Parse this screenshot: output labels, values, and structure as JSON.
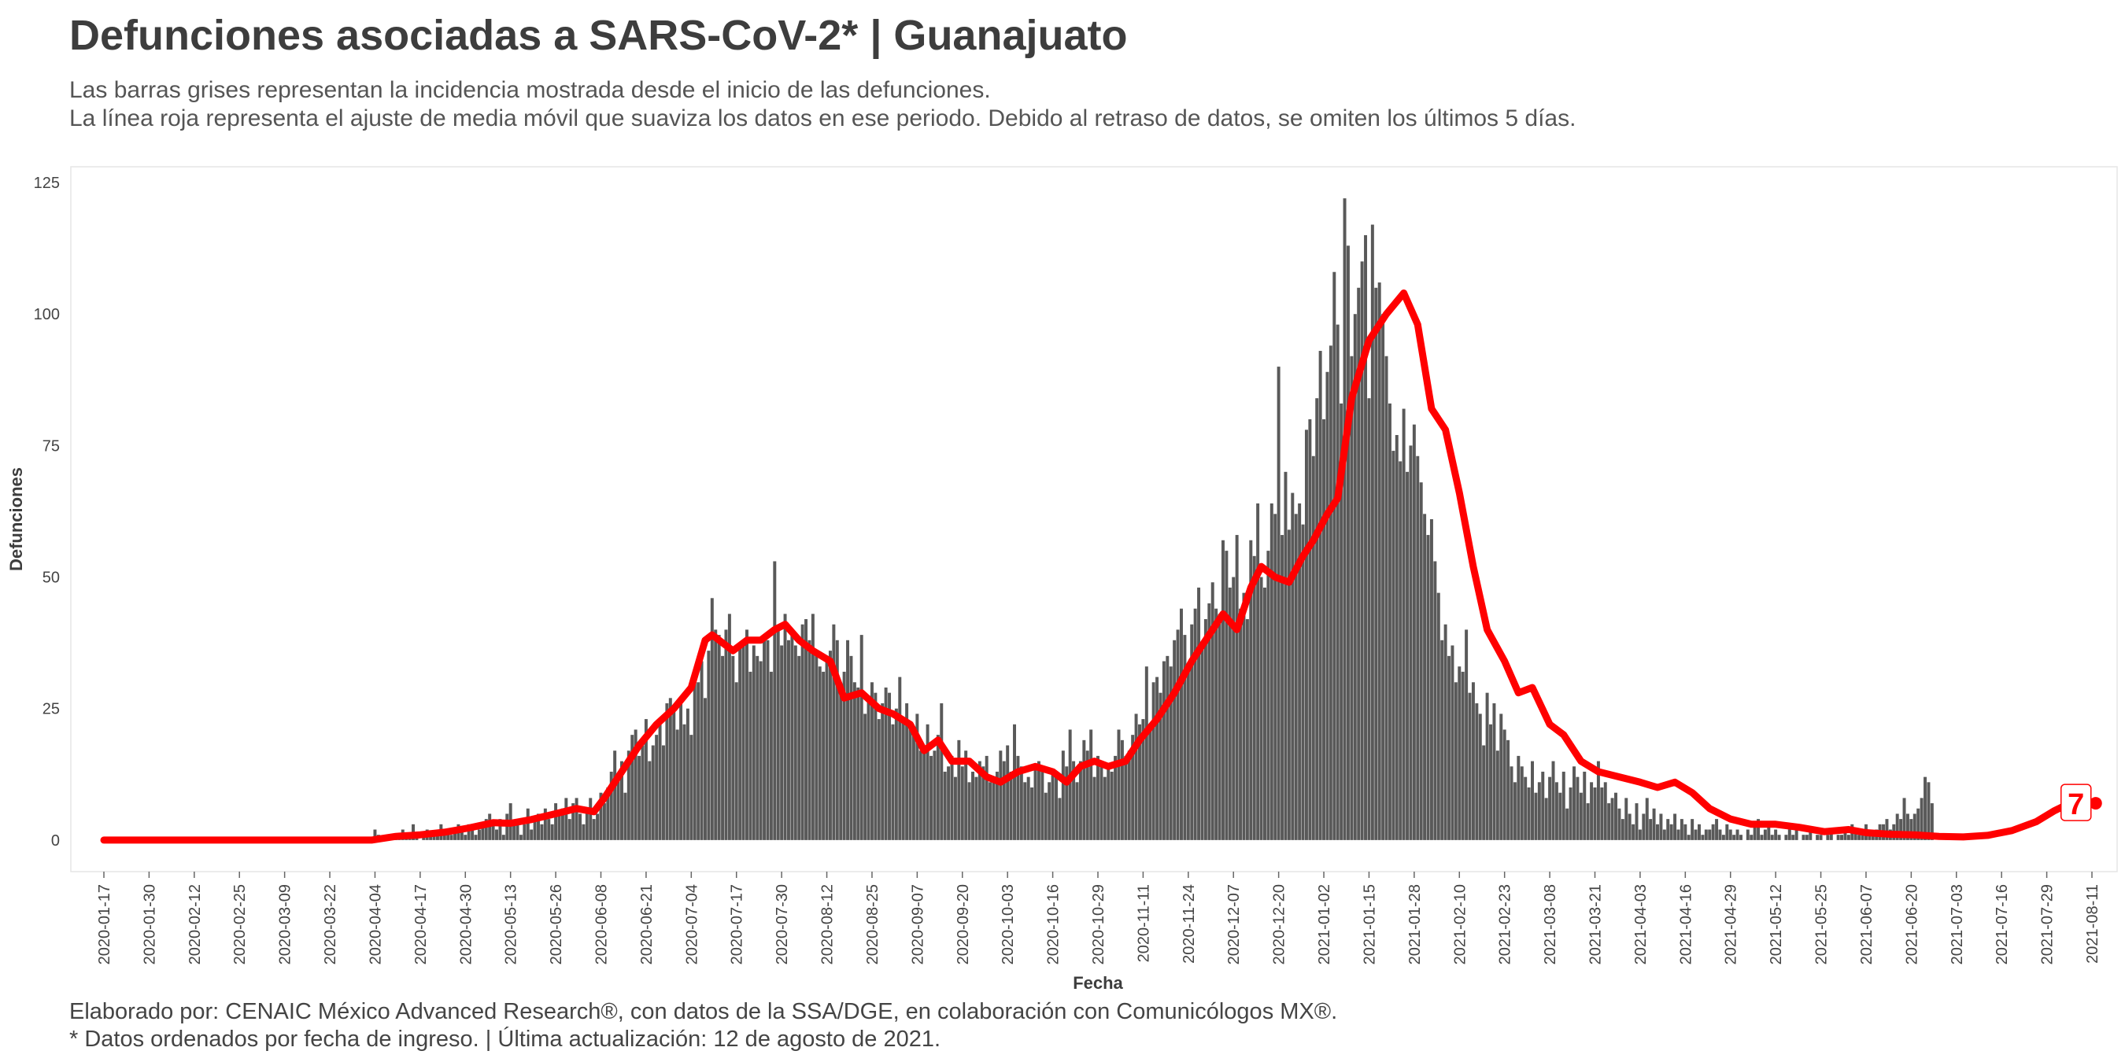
{
  "header": {
    "title": "Defunciones asociadas a SARS-CoV-2* | Guanajuato",
    "subtitle_line1": "Las barras grises representan la incidencia mostrada desde el inicio de las defunciones.",
    "subtitle_line2": "La línea roja representa el ajuste de media móvil que suaviza los datos en ese periodo. Debido al retraso de datos, se omiten los últimos 5 días."
  },
  "footer": {
    "line1": "Elaborado por: CENAIC México Advanced Research®, con datos de la SSA/DGE, en colaboración con Comunicólogos MX®.",
    "line2": "* Datos ordenados por fecha de ingreso. | Última actualización: 12 de agosto de 2021."
  },
  "colors": {
    "bars": "#595959",
    "line": "#ff0000",
    "panel_border": "#e6e6e6"
  },
  "chart_data": {
    "type": "bar",
    "xlabel": "Fecha",
    "ylabel": "Defunciones",
    "x_start": "2020-01-17",
    "x_end": "2021-08-11",
    "ylim": [
      -6,
      128
    ],
    "y_ticks": [
      0,
      25,
      50,
      75,
      100,
      125
    ],
    "x_ticks": [
      "2020-01-17",
      "2020-01-30",
      "2020-02-12",
      "2020-02-25",
      "2020-03-09",
      "2020-03-22",
      "2020-04-04",
      "2020-04-17",
      "2020-04-30",
      "2020-05-13",
      "2020-05-26",
      "2020-06-08",
      "2020-06-21",
      "2020-07-04",
      "2020-07-17",
      "2020-07-30",
      "2020-08-12",
      "2020-08-25",
      "2020-09-07",
      "2020-09-20",
      "2020-10-03",
      "2020-10-16",
      "2020-10-29",
      "2020-11-11",
      "2020-11-24",
      "2020-12-07",
      "2020-12-20",
      "2021-01-02",
      "2021-01-15",
      "2021-01-28",
      "2021-02-10",
      "2021-02-23",
      "2021-03-08",
      "2021-03-21",
      "2021-04-03",
      "2021-04-16",
      "2021-04-29",
      "2021-05-12",
      "2021-05-25",
      "2021-06-07",
      "2021-06-20",
      "2021-07-03",
      "2021-07-16",
      "2021-07-29",
      "2021-08-11"
    ],
    "bar_series": {
      "name": "Incidencia",
      "start_date": "2020-04-03",
      "values": [
        0,
        2,
        1,
        0,
        1,
        1,
        0,
        1,
        1,
        2,
        1,
        1,
        3,
        1,
        0,
        1,
        2,
        1,
        1,
        1,
        3,
        2,
        2,
        1,
        2,
        3,
        2,
        1,
        3,
        2,
        1,
        2,
        3,
        4,
        5,
        3,
        2,
        4,
        1,
        5,
        7,
        3,
        4,
        1,
        3,
        6,
        2,
        4,
        5,
        3,
        6,
        4,
        3,
        7,
        5,
        6,
        8,
        4,
        7,
        8,
        5,
        3,
        6,
        8,
        4,
        5,
        9,
        7,
        10,
        13,
        17,
        12,
        15,
        9,
        17,
        20,
        21,
        16,
        18,
        23,
        15,
        18,
        20,
        23,
        18,
        26,
        27,
        25,
        21,
        26,
        22,
        25,
        20,
        32,
        30,
        34,
        27,
        36,
        46,
        40,
        39,
        35,
        40,
        43,
        35,
        30,
        37,
        38,
        40,
        32,
        37,
        35,
        34,
        39,
        38,
        32,
        53,
        40,
        37,
        43,
        38,
        40,
        37,
        35,
        41,
        42,
        38,
        43,
        36,
        33,
        32,
        35,
        36,
        41,
        38,
        29,
        32,
        38,
        35,
        30,
        29,
        39,
        24,
        27,
        30,
        28,
        23,
        26,
        29,
        28,
        22,
        25,
        31,
        23,
        26,
        22,
        20,
        24,
        17,
        18,
        22,
        16,
        17,
        20,
        26,
        13,
        14,
        16,
        12,
        19,
        14,
        17,
        11,
        13,
        12,
        15,
        14,
        16,
        11,
        12,
        13,
        17,
        15,
        18,
        13,
        22,
        16,
        14,
        11,
        12,
        10,
        14,
        15,
        13,
        9,
        11,
        13,
        12,
        8,
        17,
        14,
        21,
        15,
        11,
        15,
        19,
        17,
        21,
        12,
        16,
        15,
        12,
        14,
        13,
        16,
        21,
        19,
        16,
        17,
        20,
        24,
        22,
        23,
        33,
        22,
        30,
        31,
        28,
        34,
        35,
        33,
        38,
        40,
        44,
        39,
        33,
        41,
        44,
        48,
        37,
        42,
        45,
        49,
        44,
        43,
        57,
        55,
        48,
        50,
        58,
        44,
        47,
        42,
        57,
        54,
        64,
        50,
        48,
        55,
        64,
        62,
        90,
        58,
        70,
        59,
        66,
        62,
        64,
        60,
        78,
        80,
        73,
        84,
        93,
        80,
        89,
        94,
        108,
        98,
        83,
        122,
        113,
        92,
        100,
        105,
        110,
        115,
        84,
        117,
        105,
        106,
        100,
        92,
        83,
        74,
        77,
        72,
        82,
        70,
        75,
        79,
        73,
        68,
        62,
        58,
        61,
        53,
        47,
        38,
        41,
        35,
        37,
        30,
        33,
        32,
        40,
        28,
        30,
        26,
        24,
        18,
        28,
        22,
        26,
        17,
        24,
        21,
        19,
        14,
        11,
        16,
        14,
        12,
        10,
        15,
        9,
        11,
        13,
        8,
        12,
        15,
        11,
        9,
        13,
        6,
        10,
        14,
        12,
        9,
        13,
        7,
        11,
        10,
        15,
        10,
        11,
        7,
        8,
        9,
        6,
        4,
        8,
        5,
        3,
        7,
        2,
        5,
        8,
        4,
        6,
        3,
        5,
        2,
        4,
        3,
        5,
        2,
        4,
        3,
        1,
        4,
        2,
        3,
        1,
        2,
        2,
        3,
        4,
        2,
        1,
        3,
        2,
        1,
        2,
        1,
        0,
        2,
        1,
        3,
        4,
        1,
        2,
        3,
        1,
        2,
        1,
        0,
        1,
        2,
        1,
        2,
        0,
        1,
        1,
        2,
        0,
        1,
        1,
        0,
        1,
        2,
        0,
        1,
        1,
        2,
        1,
        3,
        2,
        1,
        2,
        3,
        2,
        1,
        2,
        3,
        3,
        4,
        2,
        3,
        5,
        4,
        8,
        5,
        4,
        5,
        6,
        8,
        12,
        11,
        7
      ]
    },
    "line_series": {
      "name": "Media móvil",
      "points": [
        [
          "2020-01-17",
          0
        ],
        [
          "2020-04-03",
          0
        ],
        [
          "2020-04-10",
          0.7
        ],
        [
          "2020-04-17",
          1
        ],
        [
          "2020-04-24",
          1.5
        ],
        [
          "2020-05-01",
          2.3
        ],
        [
          "2020-05-08",
          3.3
        ],
        [
          "2020-05-13",
          3.2
        ],
        [
          "2020-05-19",
          3.9
        ],
        [
          "2020-05-26",
          5
        ],
        [
          "2020-06-01",
          6
        ],
        [
          "2020-06-06",
          5.4
        ],
        [
          "2020-06-09",
          8
        ],
        [
          "2020-06-14",
          13
        ],
        [
          "2020-06-19",
          18
        ],
        [
          "2020-06-24",
          22
        ],
        [
          "2020-06-29",
          25
        ],
        [
          "2020-07-04",
          29
        ],
        [
          "2020-07-08",
          38
        ],
        [
          "2020-07-10",
          39
        ],
        [
          "2020-07-16",
          36
        ],
        [
          "2020-07-20",
          38
        ],
        [
          "2020-07-24",
          38
        ],
        [
          "2020-07-28",
          40
        ],
        [
          "2020-07-31",
          41
        ],
        [
          "2020-08-04",
          38
        ],
        [
          "2020-08-08",
          36
        ],
        [
          "2020-08-13",
          34
        ],
        [
          "2020-08-17",
          27
        ],
        [
          "2020-08-22",
          28
        ],
        [
          "2020-08-27",
          25
        ],
        [
          "2020-08-31",
          24
        ],
        [
          "2020-09-05",
          22
        ],
        [
          "2020-09-09",
          17
        ],
        [
          "2020-09-13",
          19
        ],
        [
          "2020-09-17",
          15
        ],
        [
          "2020-09-22",
          15
        ],
        [
          "2020-09-27",
          12
        ],
        [
          "2020-10-01",
          11
        ],
        [
          "2020-10-06",
          13
        ],
        [
          "2020-10-11",
          14
        ],
        [
          "2020-10-16",
          13
        ],
        [
          "2020-10-20",
          11
        ],
        [
          "2020-10-24",
          14
        ],
        [
          "2020-10-28",
          15
        ],
        [
          "2020-11-01",
          14
        ],
        [
          "2020-11-06",
          15
        ],
        [
          "2020-11-10",
          19
        ],
        [
          "2020-11-15",
          23
        ],
        [
          "2020-11-20",
          28
        ],
        [
          "2020-11-25",
          34
        ],
        [
          "2020-11-30",
          39
        ],
        [
          "2020-12-04",
          43
        ],
        [
          "2020-12-08",
          40
        ],
        [
          "2020-12-12",
          48
        ],
        [
          "2020-12-15",
          52
        ],
        [
          "2020-12-19",
          50
        ],
        [
          "2020-12-23",
          49
        ],
        [
          "2020-12-27",
          54
        ],
        [
          "2020-12-30",
          57
        ],
        [
          "2021-01-03",
          62
        ],
        [
          "2021-01-06",
          65
        ],
        [
          "2021-01-10",
          84
        ],
        [
          "2021-01-15",
          95
        ],
        [
          "2021-01-20",
          100
        ],
        [
          "2021-01-25",
          104
        ],
        [
          "2021-01-29",
          98
        ],
        [
          "2021-02-02",
          82
        ],
        [
          "2021-02-06",
          78
        ],
        [
          "2021-02-10",
          66
        ],
        [
          "2021-02-14",
          52
        ],
        [
          "2021-02-18",
          40
        ],
        [
          "2021-02-23",
          34
        ],
        [
          "2021-02-27",
          28
        ],
        [
          "2021-03-03",
          29
        ],
        [
          "2021-03-08",
          22
        ],
        [
          "2021-03-12",
          20
        ],
        [
          "2021-03-17",
          15
        ],
        [
          "2021-03-22",
          13
        ],
        [
          "2021-03-28",
          12
        ],
        [
          "2021-04-03",
          11
        ],
        [
          "2021-04-08",
          10
        ],
        [
          "2021-04-13",
          11
        ],
        [
          "2021-04-18",
          9
        ],
        [
          "2021-04-23",
          6
        ],
        [
          "2021-04-29",
          4
        ],
        [
          "2021-05-05",
          3
        ],
        [
          "2021-05-12",
          3
        ],
        [
          "2021-05-19",
          2.4
        ],
        [
          "2021-05-26",
          1.6
        ],
        [
          "2021-06-02",
          2
        ],
        [
          "2021-06-07",
          1.4
        ],
        [
          "2021-06-14",
          1.1
        ],
        [
          "2021-06-21",
          1
        ],
        [
          "2021-06-28",
          0.7
        ],
        [
          "2021-07-05",
          0.6
        ],
        [
          "2021-07-12",
          0.9
        ],
        [
          "2021-07-19",
          1.8
        ],
        [
          "2021-07-26",
          3.5
        ],
        [
          "2021-07-31",
          5.5
        ],
        [
          "2021-08-04",
          6.8
        ],
        [
          "2021-08-08",
          7
        ]
      ]
    },
    "annotation": {
      "text": "7",
      "date": "2021-08-08",
      "value": 7
    }
  }
}
